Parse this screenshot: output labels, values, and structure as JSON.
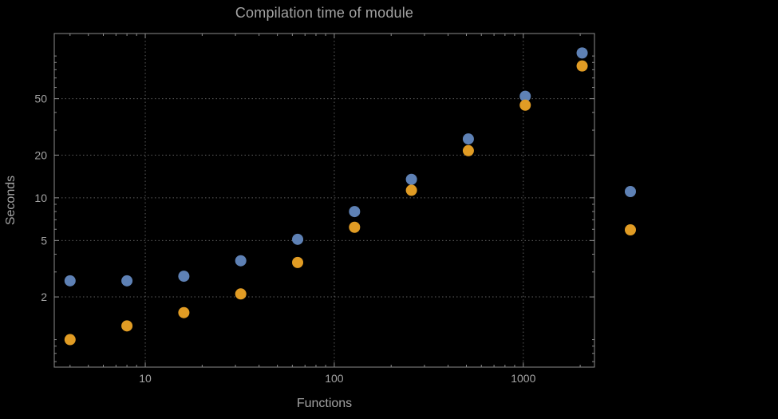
{
  "style": {
    "background": "#000000",
    "text_color": "#a3a3a3",
    "frame_color": "#8c8c8c",
    "grid_color": "#5c5c5c"
  },
  "chart_data": {
    "type": "scatter",
    "title": "Compilation time of module",
    "xlabel": "Functions",
    "ylabel": "Seconds",
    "xscale": "log",
    "yscale": "log",
    "xlim": [
      3.3,
      2380
    ],
    "ylim": [
      0.64,
      144
    ],
    "x_ticks": [
      10,
      100,
      1000
    ],
    "x_tick_labels": [
      "10",
      "100",
      "1000"
    ],
    "y_ticks": [
      2,
      5,
      10,
      20,
      50
    ],
    "y_tick_labels": [
      "2",
      "5",
      "10",
      "20",
      "50"
    ],
    "grid": "dotted",
    "legend_position": "right-outside",
    "marker_radius": 7,
    "x": [
      4,
      8,
      16,
      32,
      64,
      128,
      256,
      512,
      1024,
      2048
    ],
    "series": [
      {
        "name": "series-1",
        "color": "#5E81B5",
        "values": [
          2.6,
          2.6,
          2.8,
          3.6,
          5.1,
          8.0,
          13.5,
          26,
          52,
          105
        ]
      },
      {
        "name": "series-2",
        "color": "#E19C24",
        "values": [
          1.0,
          1.25,
          1.55,
          2.1,
          3.5,
          6.2,
          11.3,
          21.5,
          45,
          85
        ]
      }
    ],
    "legend": {
      "entries": [
        {
          "series": "series-1",
          "color": "#5E81B5",
          "label": ""
        },
        {
          "series": "series-2",
          "color": "#E19C24",
          "label": ""
        }
      ]
    }
  }
}
